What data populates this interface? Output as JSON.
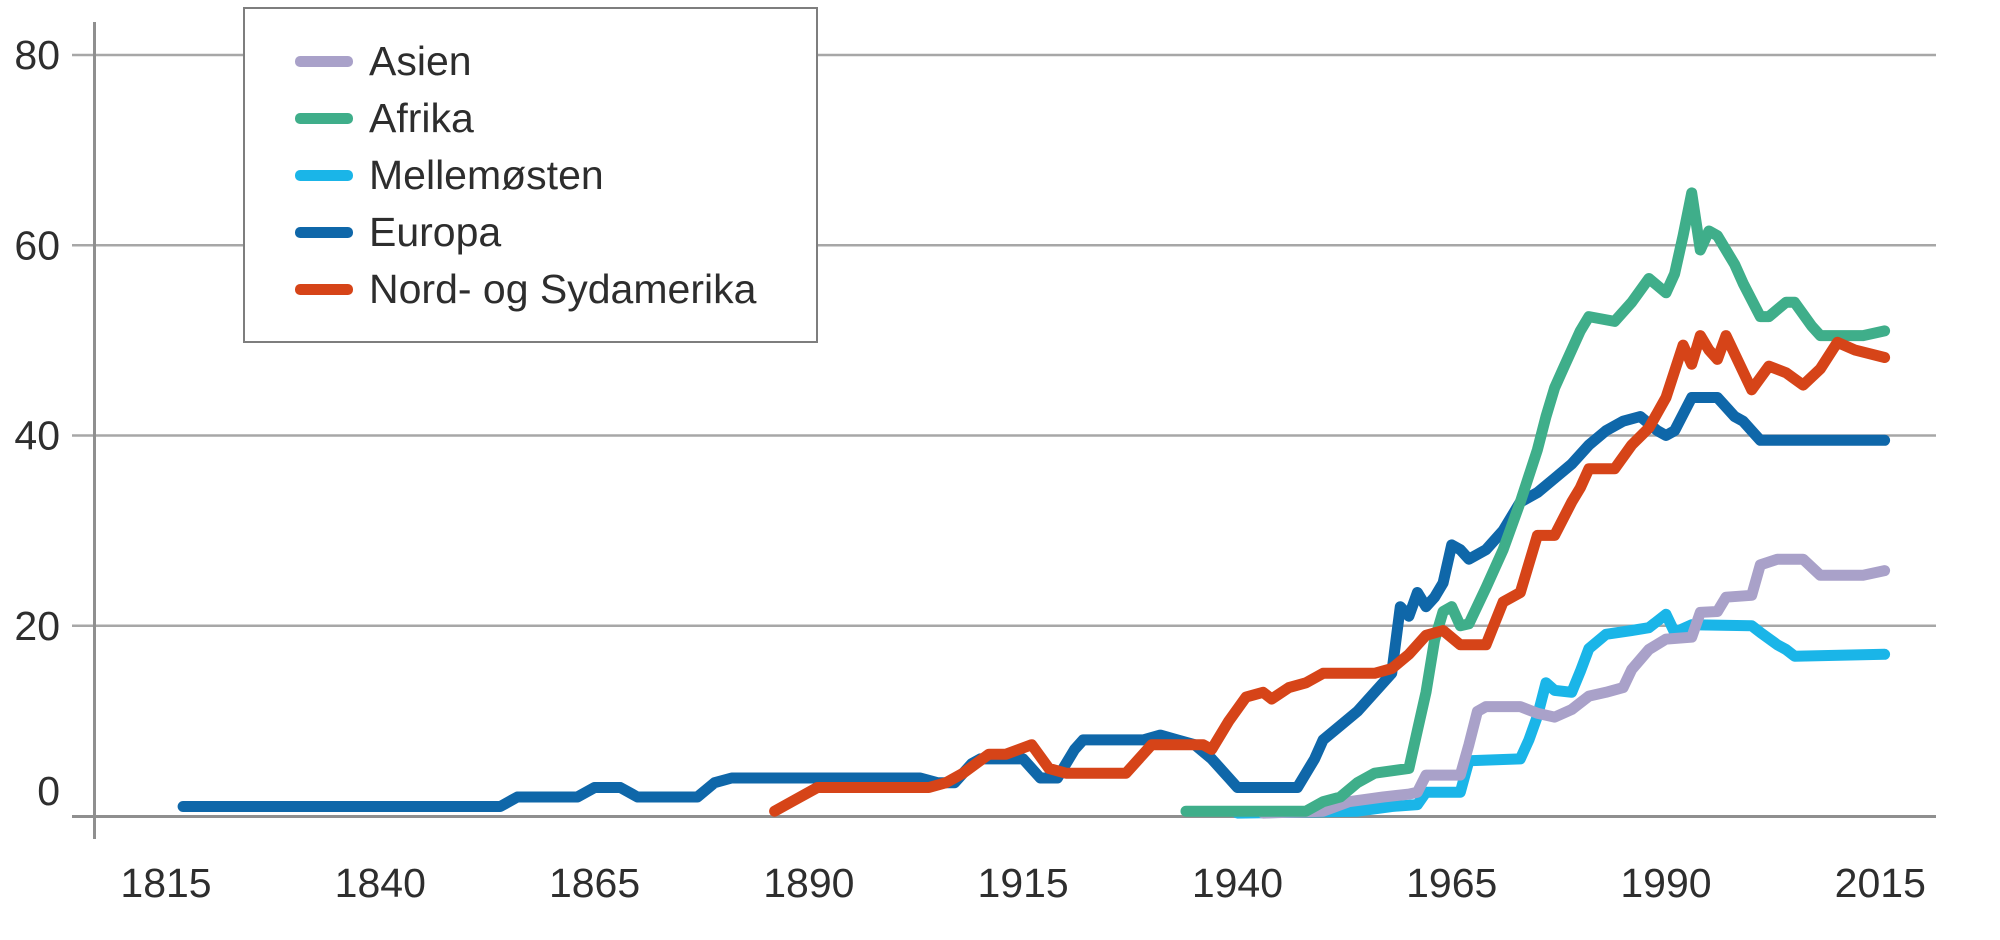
{
  "chart_data": {
    "type": "line",
    "title": "",
    "xlabel": "",
    "ylabel": "",
    "x_ticks": [
      1815,
      1840,
      1865,
      1890,
      1915,
      1940,
      1965,
      1990,
      2015
    ],
    "y_ticks": [
      0,
      20,
      40,
      60,
      80
    ],
    "xlim": [
      1807,
      2018
    ],
    "ylim": [
      0,
      80
    ],
    "grid": "horizontal",
    "legend_position": "top-left",
    "colors": {
      "grid": "#a7a7a7",
      "axis": "#8f8f8f",
      "tick_label": "#2e2e2e",
      "legend_border": "#7e7e7e",
      "legend_text": "#2d2d2d",
      "background": "#ffffff"
    },
    "draw_order": [
      2,
      0,
      3,
      1,
      4
    ],
    "series": [
      {
        "name": "Asien",
        "color": "#a9a1c9",
        "points": [
          [
            1943,
            0.3
          ],
          [
            1950,
            0.5
          ],
          [
            1953,
            1.5
          ],
          [
            1957,
            2
          ],
          [
            1960,
            2.3
          ],
          [
            1961,
            2.5
          ],
          [
            1962,
            4.3
          ],
          [
            1966,
            4.3
          ],
          [
            1967,
            7.5
          ],
          [
            1968,
            11
          ],
          [
            1969,
            11.5
          ],
          [
            1973,
            11.5
          ],
          [
            1975,
            10.8
          ],
          [
            1977,
            10.4
          ],
          [
            1979,
            11.2
          ],
          [
            1981,
            12.6
          ],
          [
            1983,
            13
          ],
          [
            1985,
            13.5
          ],
          [
            1986,
            15.4
          ],
          [
            1988,
            17.5
          ],
          [
            1990,
            18.6
          ],
          [
            1993,
            18.8
          ],
          [
            1994,
            21.4
          ],
          [
            1996,
            21.5
          ],
          [
            1997,
            23
          ],
          [
            2000,
            23.2
          ],
          [
            2001,
            26.4
          ],
          [
            2003,
            27
          ],
          [
            2006,
            27
          ],
          [
            2008,
            25.3
          ],
          [
            2013,
            25.3
          ],
          [
            2015.5,
            25.8
          ]
        ]
      },
      {
        "name": "Afrika",
        "color": "#3fae8a",
        "points": [
          [
            1934,
            0.5
          ],
          [
            1948,
            0.5
          ],
          [
            1950,
            1.5
          ],
          [
            1952,
            2
          ],
          [
            1954,
            3.5
          ],
          [
            1956,
            4.5
          ],
          [
            1960,
            5
          ],
          [
            1961,
            9
          ],
          [
            1962,
            13
          ],
          [
            1963,
            18.5
          ],
          [
            1964,
            21.5
          ],
          [
            1965,
            22
          ],
          [
            1966,
            20
          ],
          [
            1967,
            20.2
          ],
          [
            1969,
            24
          ],
          [
            1971,
            28
          ],
          [
            1973,
            33
          ],
          [
            1975,
            38.5
          ],
          [
            1976,
            42
          ],
          [
            1977,
            45
          ],
          [
            1978,
            47
          ],
          [
            1980,
            51
          ],
          [
            1981,
            52.5
          ],
          [
            1984,
            52
          ],
          [
            1986,
            54
          ],
          [
            1988,
            56.5
          ],
          [
            1990,
            55
          ],
          [
            1991,
            57
          ],
          [
            1992,
            61
          ],
          [
            1993,
            65.5
          ],
          [
            1994,
            59.5
          ],
          [
            1995,
            61.5
          ],
          [
            1996,
            61
          ],
          [
            1998,
            58
          ],
          [
            1999,
            56
          ],
          [
            2001,
            52.5
          ],
          [
            2002,
            52.5
          ],
          [
            2004,
            54
          ],
          [
            2005,
            54
          ],
          [
            2007,
            51.5
          ],
          [
            2008,
            50.5
          ],
          [
            2013,
            50.5
          ],
          [
            2015.5,
            51
          ]
        ]
      },
      {
        "name": "Mellemøsten",
        "color": "#1ab5e8",
        "points": [
          [
            1940,
            0.3
          ],
          [
            1954,
            0.5
          ],
          [
            1958,
            1
          ],
          [
            1961,
            1.2
          ],
          [
            1962,
            2.5
          ],
          [
            1966,
            2.5
          ],
          [
            1967,
            5.8
          ],
          [
            1973,
            6
          ],
          [
            1974,
            8
          ],
          [
            1975,
            10.5
          ],
          [
            1976,
            14
          ],
          [
            1977,
            13.2
          ],
          [
            1979,
            13
          ],
          [
            1980,
            15.2
          ],
          [
            1981,
            17.6
          ],
          [
            1983,
            19.1
          ],
          [
            1986,
            19.5
          ],
          [
            1988,
            19.8
          ],
          [
            1990,
            21.2
          ],
          [
            1991,
            19.3
          ],
          [
            1993,
            20.1
          ],
          [
            2000,
            20
          ],
          [
            2001,
            19.3
          ],
          [
            2003,
            18
          ],
          [
            2004,
            17.5
          ],
          [
            2005,
            16.8
          ],
          [
            2015.5,
            17
          ]
        ]
      },
      {
        "name": "Europa",
        "color": "#0f67a9",
        "points": [
          [
            1817,
            1
          ],
          [
            1854,
            1
          ],
          [
            1856,
            2
          ],
          [
            1863,
            2
          ],
          [
            1865,
            3
          ],
          [
            1868,
            3
          ],
          [
            1870,
            2
          ],
          [
            1877,
            2
          ],
          [
            1879,
            3.5
          ],
          [
            1881,
            4
          ],
          [
            1903,
            4
          ],
          [
            1905,
            3.5
          ],
          [
            1907,
            3.5
          ],
          [
            1909,
            5.5
          ],
          [
            1910,
            6
          ],
          [
            1915,
            6
          ],
          [
            1917,
            4
          ],
          [
            1919,
            4
          ],
          [
            1921,
            7
          ],
          [
            1922,
            8
          ],
          [
            1929,
            8
          ],
          [
            1931,
            8.5
          ],
          [
            1933,
            8
          ],
          [
            1935,
            7.5
          ],
          [
            1937,
            6
          ],
          [
            1939,
            4
          ],
          [
            1940,
            3
          ],
          [
            1947,
            3
          ],
          [
            1949,
            6
          ],
          [
            1950,
            8
          ],
          [
            1952,
            9.5
          ],
          [
            1954,
            11
          ],
          [
            1956,
            13
          ],
          [
            1958,
            15
          ],
          [
            1959,
            22
          ],
          [
            1960,
            21
          ],
          [
            1961,
            23.5
          ],
          [
            1962,
            22
          ],
          [
            1963,
            23
          ],
          [
            1964,
            24.5
          ],
          [
            1965,
            28.5
          ],
          [
            1966,
            28
          ],
          [
            1967,
            27
          ],
          [
            1969,
            28
          ],
          [
            1971,
            30
          ],
          [
            1973,
            33
          ],
          [
            1975,
            34
          ],
          [
            1977,
            35.5
          ],
          [
            1979,
            37
          ],
          [
            1981,
            39
          ],
          [
            1983,
            40.5
          ],
          [
            1985,
            41.5
          ],
          [
            1987,
            42
          ],
          [
            1989,
            40.5
          ],
          [
            1990,
            40
          ],
          [
            1991,
            40.5
          ],
          [
            1993,
            44
          ],
          [
            1996,
            44
          ],
          [
            1998,
            42
          ],
          [
            1999,
            41.5
          ],
          [
            2001,
            39.5
          ],
          [
            2015.5,
            39.5
          ]
        ]
      },
      {
        "name": "Nord- og Sydamerika",
        "color": "#d64418",
        "points": [
          [
            1886,
            0.5
          ],
          [
            1888,
            1.5
          ],
          [
            1891,
            3
          ],
          [
            1904,
            3
          ],
          [
            1906,
            3.5
          ],
          [
            1908,
            4.5
          ],
          [
            1911,
            6.5
          ],
          [
            1913,
            6.5
          ],
          [
            1916,
            7.5
          ],
          [
            1918,
            5
          ],
          [
            1920,
            4.5
          ],
          [
            1927,
            4.5
          ],
          [
            1930,
            7.5
          ],
          [
            1936,
            7.5
          ],
          [
            1937,
            7
          ],
          [
            1939,
            10
          ],
          [
            1941,
            12.5
          ],
          [
            1943,
            13
          ],
          [
            1944,
            12.3
          ],
          [
            1946,
            13.5
          ],
          [
            1948,
            14
          ],
          [
            1950,
            15
          ],
          [
            1956,
            15
          ],
          [
            1958,
            15.5
          ],
          [
            1960,
            17
          ],
          [
            1962,
            19
          ],
          [
            1964,
            19.5
          ],
          [
            1966,
            18
          ],
          [
            1969,
            18
          ],
          [
            1971,
            22.5
          ],
          [
            1973,
            23.5
          ],
          [
            1975,
            29.5
          ],
          [
            1977,
            29.5
          ],
          [
            1979,
            33
          ],
          [
            1980,
            34.5
          ],
          [
            1981,
            36.5
          ],
          [
            1984,
            36.5
          ],
          [
            1986,
            39
          ],
          [
            1988,
            40.8
          ],
          [
            1990,
            44
          ],
          [
            1992,
            49.5
          ],
          [
            1993,
            47.5
          ],
          [
            1994,
            50.5
          ],
          [
            1995,
            49
          ],
          [
            1996,
            48
          ],
          [
            1997,
            50.5
          ],
          [
            2000,
            44.8
          ],
          [
            2002,
            47.3
          ],
          [
            2004,
            46.6
          ],
          [
            2006,
            45.3
          ],
          [
            2008,
            47
          ],
          [
            2010,
            49.8
          ],
          [
            2012,
            49
          ],
          [
            2015.5,
            48.2
          ]
        ]
      }
    ]
  }
}
